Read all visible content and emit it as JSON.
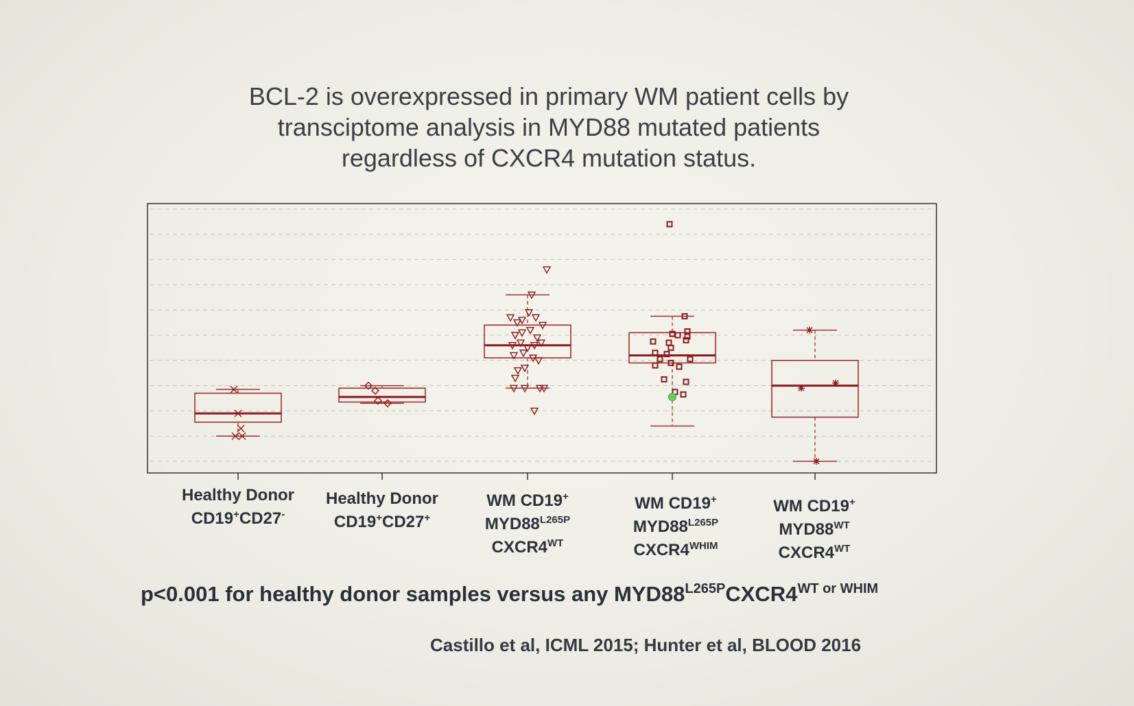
{
  "slide": {
    "title_lines": [
      "BCL-2 is overexpressed in primary WM patient cells by",
      "transciptome analysis in MYD88 mutated patients",
      "regardless of CXCR4 mutation status."
    ],
    "pvalue": {
      "prefix": "p<0.001 for healthy donor samples versus any MYD88",
      "sup1": "L265P",
      "mid": "CXCR4",
      "sup2": "WT",
      "suffix": " or WHIM"
    },
    "citation": "Castillo et al, ICML 2015; Hunter et al, BLOOD 2016"
  },
  "categories": [
    {
      "lines": [
        {
          "t": "Healthy Donor"
        },
        {
          "t": "CD19",
          "s": "+",
          "t2": "CD27",
          "s2": "-"
        }
      ]
    },
    {
      "lines": [
        {
          "t": "Healthy Donor"
        },
        {
          "t": "CD19",
          "s": "+",
          "t2": "CD27",
          "s2": "+"
        }
      ]
    },
    {
      "lines": [
        {
          "t": "WM  CD19",
          "s": "+"
        },
        {
          "t": "MYD88",
          "s": "L265P"
        },
        {
          "t": "CXCR4",
          "s": "WT"
        }
      ]
    },
    {
      "lines": [
        {
          "t": "WM  CD19",
          "s": "+"
        },
        {
          "t": "MYD88",
          "s": "L265P"
        },
        {
          "t": "CXCR4",
          "s": "WHIM"
        }
      ]
    },
    {
      "lines": [
        {
          "t": "WM  CD19",
          "s": "+"
        },
        {
          "t": "MYD88",
          "s": "WT"
        },
        {
          "t": "CXCR4",
          "s": "WT"
        }
      ]
    }
  ],
  "colors": {
    "marks": "#8b1a1a",
    "box": "#9c3030",
    "highlight": "#5fd35f",
    "axis": "#333333",
    "grid": "#c9c2c2"
  },
  "chart_data": {
    "type": "box",
    "ylim": [
      0,
      10
    ],
    "grid": "horizontal dashed",
    "groups": [
      {
        "marker": "x",
        "whisker_low": 1.0,
        "q1": 1.55,
        "median": 1.9,
        "q3": 2.7,
        "whisker_high": 2.85,
        "points": [
          [
            -6,
            2.85
          ],
          [
            0,
            1.9
          ],
          [
            4,
            1.3
          ],
          [
            -4,
            1.0
          ],
          [
            6,
            1.0
          ]
        ]
      },
      {
        "marker": "diamond",
        "whisker_low": 2.3,
        "q1": 2.35,
        "median": 2.55,
        "q3": 2.9,
        "whisker_high": 3.0,
        "points": [
          [
            -20,
            3.0
          ],
          [
            -10,
            2.8
          ],
          [
            -6,
            2.4
          ],
          [
            8,
            2.3
          ]
        ]
      },
      {
        "marker": "triangle-down",
        "whisker_low": 2.9,
        "q1": 4.1,
        "median": 4.6,
        "q3": 5.4,
        "whisker_high": 6.6,
        "points": [
          [
            28,
            7.6
          ],
          [
            6,
            6.6
          ],
          [
            -25,
            5.7
          ],
          [
            -15,
            5.5
          ],
          [
            -8,
            5.6
          ],
          [
            2,
            5.9
          ],
          [
            12,
            5.7
          ],
          [
            22,
            5.4
          ],
          [
            -18,
            5.0
          ],
          [
            -8,
            5.1
          ],
          [
            4,
            5.2
          ],
          [
            14,
            4.9
          ],
          [
            -22,
            4.6
          ],
          [
            -10,
            4.7
          ],
          [
            0,
            4.5
          ],
          [
            10,
            4.6
          ],
          [
            20,
            4.7
          ],
          [
            -20,
            4.2
          ],
          [
            -6,
            4.3
          ],
          [
            8,
            4.1
          ],
          [
            16,
            4.0
          ],
          [
            -14,
            3.6
          ],
          [
            -4,
            3.7
          ],
          [
            -18,
            3.3
          ],
          [
            -20,
            2.9
          ],
          [
            -4,
            2.9
          ],
          [
            18,
            2.9
          ],
          [
            24,
            2.9
          ],
          [
            10,
            2.0
          ]
        ]
      },
      {
        "marker": "square",
        "whisker_low": 1.4,
        "q1": 3.9,
        "median": 4.2,
        "q3": 5.1,
        "whisker_high": 5.75,
        "points": [
          [
            -4,
            9.4
          ],
          [
            18,
            5.75
          ],
          [
            -5,
            4.7
          ],
          [
            0,
            5.05
          ],
          [
            8,
            5.0
          ],
          [
            22,
            4.95
          ],
          [
            22,
            5.15
          ],
          [
            -8,
            4.25
          ],
          [
            -2,
            4.5
          ],
          [
            20,
            4.8
          ],
          [
            -28,
            4.75
          ],
          [
            -25,
            4.3
          ],
          [
            -18,
            4.05
          ],
          [
            -2,
            3.9
          ],
          [
            10,
            3.75
          ],
          [
            26,
            4.05
          ],
          [
            -25,
            3.8
          ],
          [
            -12,
            3.25
          ],
          [
            4,
            2.75
          ],
          [
            16,
            2.65
          ],
          [
            20,
            3.15
          ]
        ]
      },
      {
        "marker": "asterisk",
        "whisker_low": 0.0,
        "q1": 1.75,
        "median": 3.0,
        "q3": 4.0,
        "whisker_high": 5.2,
        "points": [
          [
            -8,
            5.2
          ],
          [
            -20,
            2.9
          ],
          [
            30,
            3.1
          ],
          [
            2,
            0.0
          ]
        ]
      }
    ],
    "highlight_point": {
      "group": 3,
      "value": 2.55
    }
  }
}
